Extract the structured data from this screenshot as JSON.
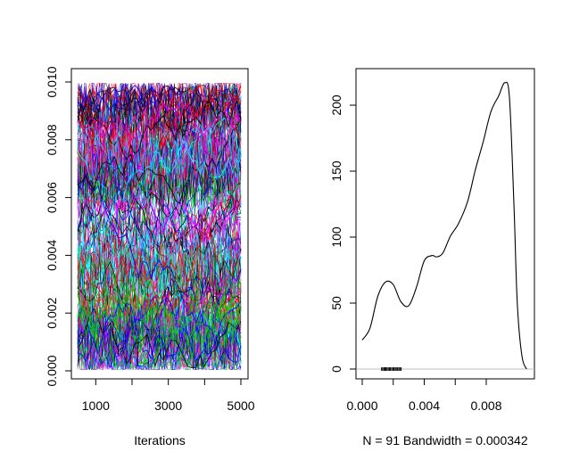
{
  "chart_data": [
    {
      "type": "line",
      "panel": "trace",
      "title": "",
      "xlabel": "Iterations",
      "ylabel": "",
      "xlim": [
        500,
        5000
      ],
      "ylim": [
        0.0,
        0.01
      ],
      "x_ticks": [
        1000,
        3000,
        5000
      ],
      "x_tick_labels": [
        "1000",
        "3000",
        "5000"
      ],
      "x_minor_ticks": [
        2000,
        4000
      ],
      "y_ticks": [
        0.0,
        0.002,
        0.004,
        0.006,
        0.008,
        0.01
      ],
      "y_tick_labels": [
        "0.000",
        "0.002",
        "0.004",
        "0.006",
        "0.008",
        "0.010"
      ],
      "n_chains": 91,
      "series_colors": [
        "#000000",
        "#ff0000",
        "#00cd00",
        "#0000ff",
        "#00ffff",
        "#ff00ff"
      ],
      "description_value_range": [
        0.0,
        0.01
      ]
    },
    {
      "type": "line",
      "panel": "density",
      "title": "",
      "xlabel": "N = 91   Bandwidth = 0.000342",
      "ylabel": "",
      "xlim": [
        -0.0005,
        0.0107
      ],
      "ylim": [
        -8,
        225
      ],
      "x_ticks": [
        0.0,
        0.004,
        0.008
      ],
      "x_tick_labels": [
        "0.000",
        "0.004",
        "0.008"
      ],
      "x_minor_ticks": [
        0.002,
        0.006
      ],
      "y_ticks": [
        0,
        50,
        100,
        150,
        200
      ],
      "y_tick_labels": [
        "0",
        "50",
        "100",
        "150",
        "200"
      ],
      "series": [
        {
          "x": [
            0.0,
            0.0005,
            0.001,
            0.0015,
            0.002,
            0.0025,
            0.003,
            0.0035,
            0.004,
            0.0045,
            0.0048,
            0.0052,
            0.0057,
            0.0062,
            0.0068,
            0.0073,
            0.0078,
            0.0083,
            0.0088,
            0.0092,
            0.0095,
            0.0098,
            0.01,
            0.0103,
            0.0106
          ],
          "y": [
            22,
            31,
            55,
            66,
            64,
            51,
            48,
            62,
            82,
            86,
            85,
            88,
            101,
            110,
            127,
            151,
            172,
            195,
            207,
            217,
            205,
            120,
            50,
            10,
            0
          ]
        }
      ],
      "rug": [
        0.00125,
        0.00132,
        0.0014,
        0.00147,
        0.00153,
        0.0016,
        0.00168,
        0.00175,
        0.00182,
        0.0019,
        0.00198,
        0.00205,
        0.00213,
        0.0022,
        0.00228,
        0.00236,
        0.00243,
        0.00251
      ],
      "baseline_color": "#bebebe",
      "line_color": "#000000"
    }
  ]
}
